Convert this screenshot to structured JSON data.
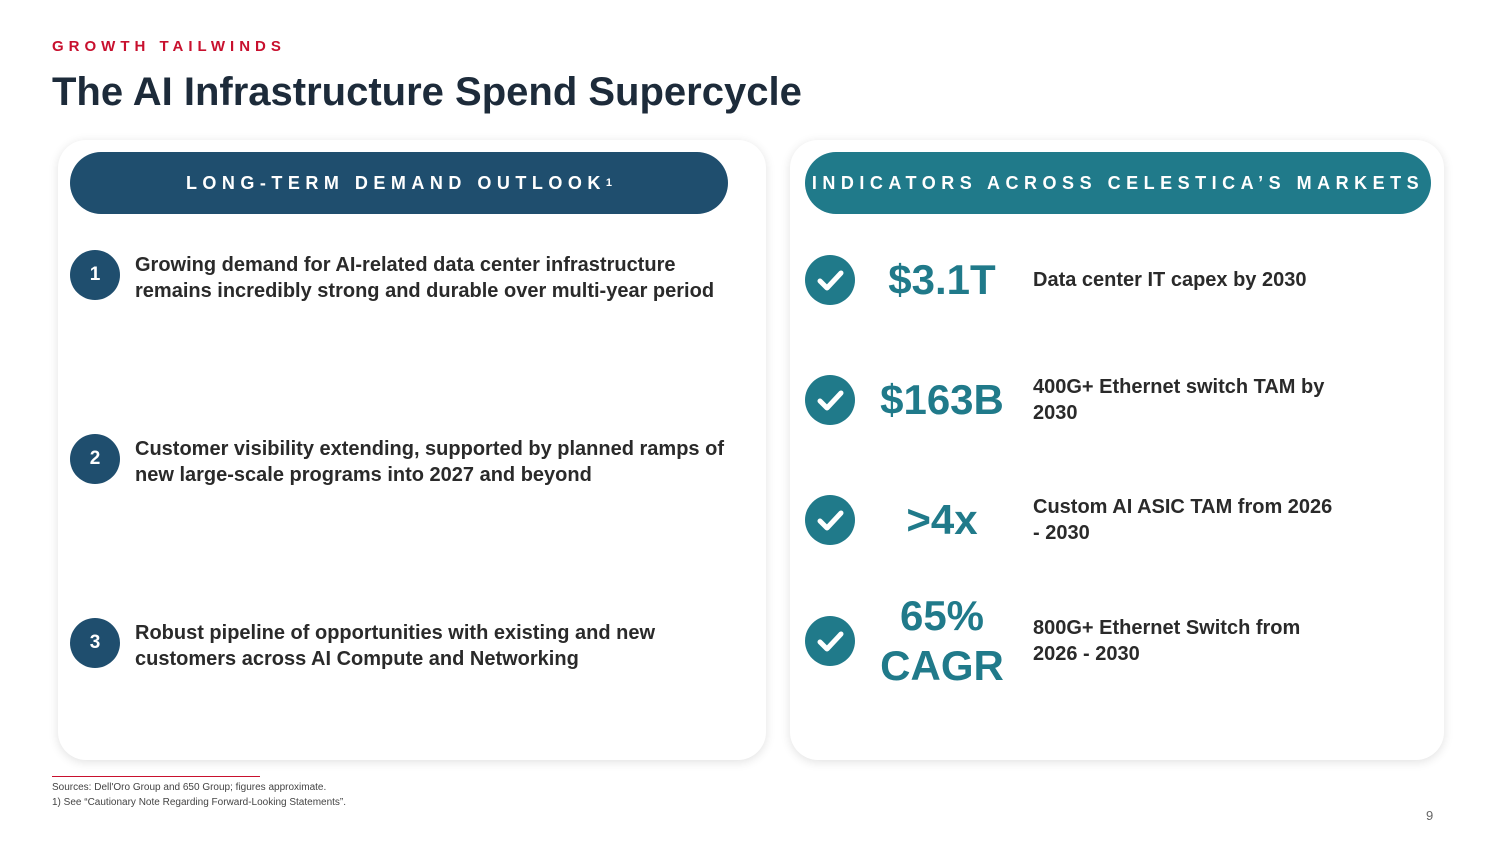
{
  "header": {
    "eyebrow": "GROWTH TAILWINDS",
    "title": "The AI Infrastructure Spend Supercycle"
  },
  "left": {
    "heading": "LONG-TERM DEMAND OUTLOOK",
    "heading_sup": "1",
    "items": [
      {
        "number": "1",
        "text": "Growing demand for AI-related data center infrastructure remains incredibly strong and durable over multi-year period"
      },
      {
        "number": "2",
        "text": "Customer visibility extending, supported by planned ramps of new large-scale programs into 2027 and beyond"
      },
      {
        "number": "3",
        "text": "Robust pipeline of opportunities with existing and new customers across AI Compute and Networking"
      }
    ]
  },
  "right": {
    "heading": "INDICATORS ACROSS CELESTICA’S MARKETS",
    "items": [
      {
        "figure": "$3.1T",
        "text": "Data center IT capex by 2030"
      },
      {
        "figure": "$163B",
        "text": "400G+ Ethernet switch TAM by 2030"
      },
      {
        "figure": ">4x",
        "text": "Custom AI ASIC TAM from 2026 - 2030"
      },
      {
        "figure": "65% CAGR",
        "text": "800G+ Ethernet Switch from 2026 - 2030"
      }
    ]
  },
  "footer": {
    "sources": "Sources: Dell'Oro Group and 650 Group; figures approximate.",
    "note": "1)  See “Cautionary Note Regarding Forward-Looking Statements”.",
    "page": "9"
  }
}
